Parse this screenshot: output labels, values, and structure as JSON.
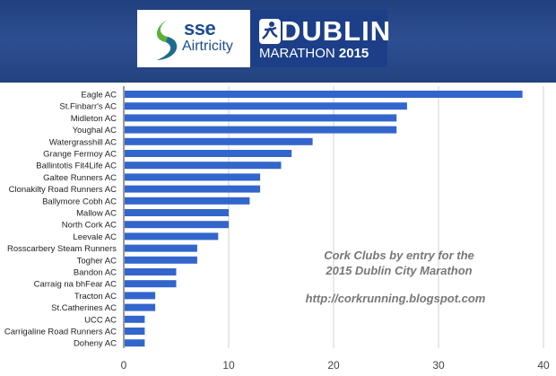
{
  "header": {
    "sponsor_top": "sse",
    "sponsor_bottom": "Airtricity",
    "event_title": "DUBLIN",
    "event_subtitle": "MARATHON",
    "event_year": "2015"
  },
  "chart_data": {
    "type": "bar",
    "orientation": "horizontal",
    "categories": [
      "Eagle AC",
      "St.Finbarr's AC",
      "Midleton AC",
      "Youghal AC",
      "Watergrasshill AC",
      "Grange Fermoy AC",
      "Ballintotis Fit4Life AC",
      "Galtee Runners AC",
      "Clonakilty Road Runners AC",
      "Ballymore Cobh AC",
      "Mallow AC",
      "North Cork AC",
      "Leevale AC",
      "Rosscarbery Steam Runners",
      "Togher AC",
      "Bandon AC",
      "Carraig na bhFear AC",
      "Tracton AC",
      "St.Catherines AC",
      "UCC AC",
      "Carrigaline Road Runners AC",
      "Doheny AC"
    ],
    "values": [
      38,
      27,
      26,
      26,
      18,
      16,
      15,
      13,
      13,
      12,
      10,
      10,
      9,
      7,
      7,
      5,
      5,
      3,
      3,
      2,
      2,
      2
    ],
    "xlim": [
      0,
      40
    ],
    "xticks": [
      "0",
      "10",
      "20",
      "30",
      "40"
    ],
    "grid": true,
    "bar_color": "#3366cc",
    "annotations": [
      "Cork Clubs by entry for the",
      "2015 Dublin City Marathon",
      "http://corkrunning.blogspot.com"
    ]
  }
}
